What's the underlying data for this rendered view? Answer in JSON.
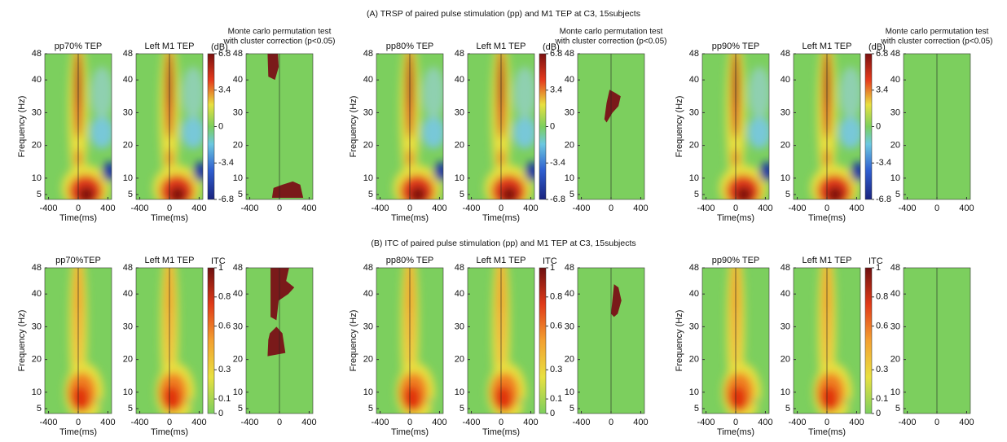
{
  "axes": {
    "xlabel": "Time(ms)",
    "ylabel": "Frequency (Hz)",
    "xlim": [
      -450,
      450
    ],
    "ylim": [
      3.5,
      48
    ],
    "xticks": [
      -400,
      0,
      400
    ],
    "yticks": [
      5,
      10,
      20,
      30,
      40,
      48
    ]
  },
  "rows": [
    {
      "title": "(A) TRSP of paired pulse stimulation (pp) and M1 TEP at C3, 15subjects",
      "groups": [
        {
          "panels": [
            "pp70% TEP",
            "Left M1 TEP"
          ],
          "stats_title": [
            "Monte carlo permutation test",
            "with cluster correction (p<0.05)"
          ],
          "colorbar": {
            "label": "(dB)",
            "lim": [
              -6.8,
              6.8
            ],
            "ticks": [
              -6.8,
              -3.4,
              0,
              3.4,
              6.8
            ]
          }
        },
        {
          "panels": [
            "pp80% TEP",
            "Left M1 TEP"
          ],
          "stats_title": [
            "Monte carlo permutation test",
            "with cluster correction (p<0.05)"
          ],
          "colorbar": {
            "label": "(dB)",
            "lim": [
              -6.8,
              6.8
            ],
            "ticks": [
              -6.8,
              -3.4,
              0,
              3.4,
              6.8
            ]
          }
        },
        {
          "panels": [
            "pp90% TEP",
            "Left M1 TEP"
          ],
          "stats_title": [
            "Monte carlo permutation test",
            "with cluster correction (p<0.05)"
          ],
          "colorbar": {
            "label": "(dB)",
            "lim": [
              -6.8,
              6.8
            ],
            "ticks": [
              -6.8,
              -3.4,
              0,
              3.4,
              6.8
            ]
          }
        }
      ]
    },
    {
      "title": "(B) ITC of paired pulse stimulation (pp) and M1 TEP at C3, 15subjects",
      "groups": [
        {
          "panels": [
            "pp70%TEP",
            "Left M1 TEP"
          ],
          "colorbar": {
            "label": "ITC",
            "lim": [
              0,
              1
            ],
            "ticks": [
              0,
              0.1,
              0.3,
              0.6,
              0.8,
              1
            ]
          }
        },
        {
          "panels": [
            "pp80% TEP",
            "Left M1 TEP"
          ],
          "colorbar": {
            "label": "ITC",
            "lim": [
              0,
              1
            ],
            "ticks": [
              0,
              0.1,
              0.3,
              0.6,
              0.8,
              1
            ]
          }
        },
        {
          "panels": [
            "pp90% TEP",
            "Left M1 TEP"
          ],
          "colorbar": {
            "label": "ITC",
            "lim": [
              0,
              1
            ],
            "ticks": [
              0,
              0.1,
              0.3,
              0.6,
              0.8,
              1
            ]
          }
        }
      ]
    }
  ]
}
